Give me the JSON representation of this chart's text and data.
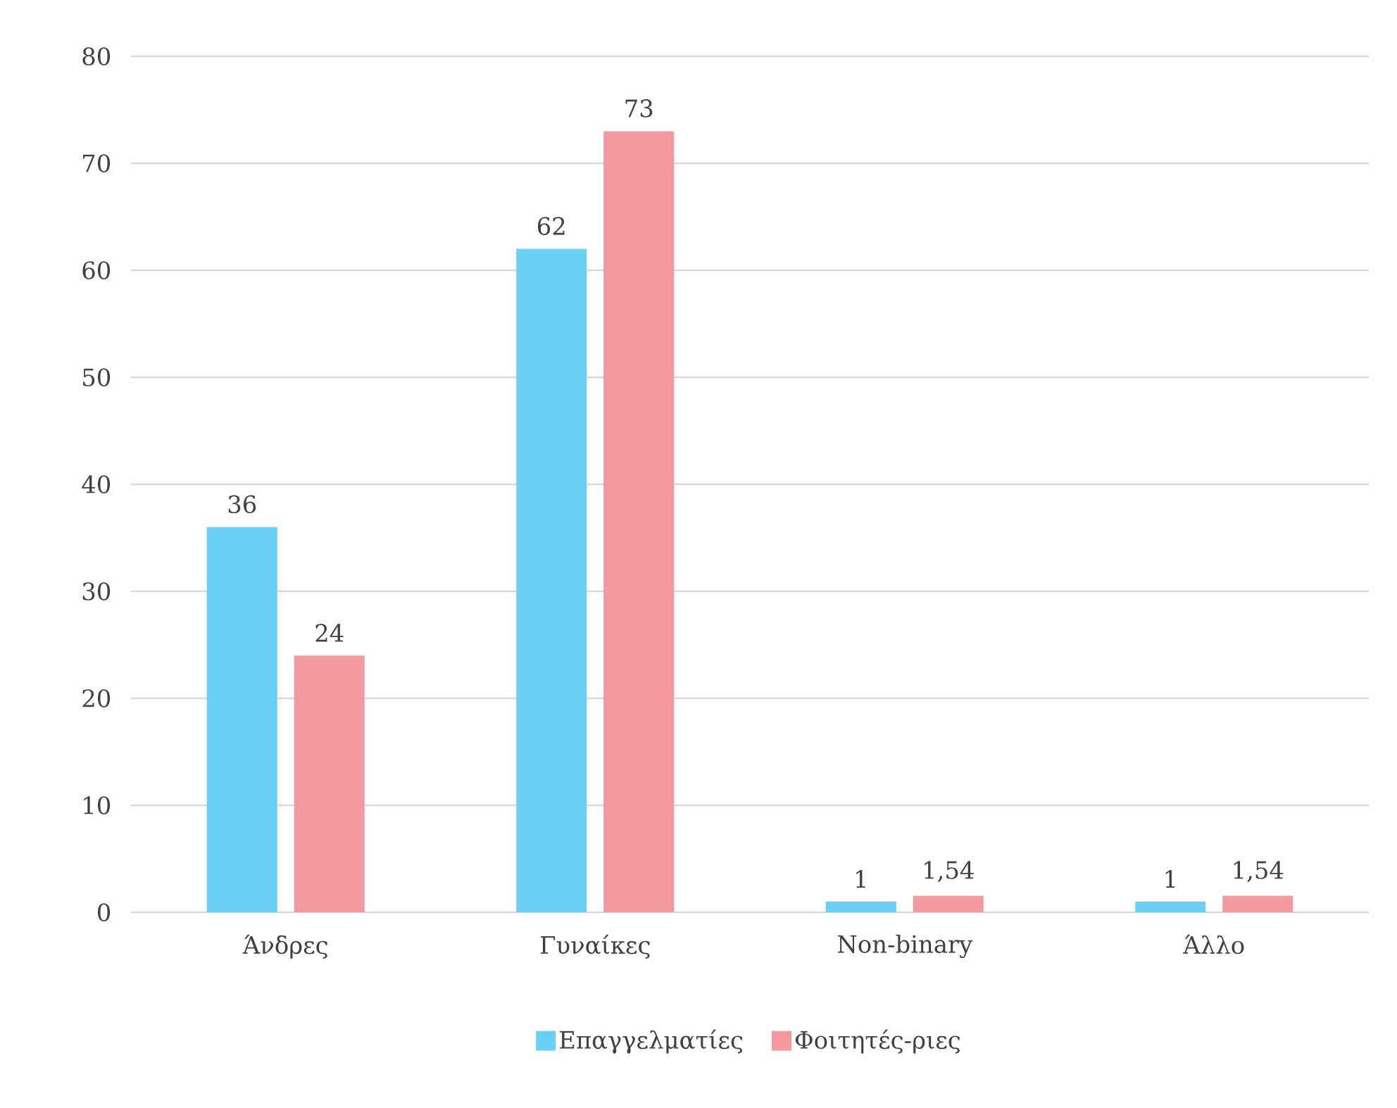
{
  "chart_data": {
    "type": "bar",
    "categories": [
      "Άνδρες",
      "Γυναίκες",
      "Non-binary",
      "Άλλο"
    ],
    "series": [
      {
        "name": "Επαγγελματίες",
        "color": "#6ad0f6",
        "values": [
          36,
          62,
          1,
          1
        ],
        "value_labels": [
          "36",
          "62",
          "1",
          "1"
        ]
      },
      {
        "name": "Φοιτητές-ριες",
        "color": "#f4999f",
        "values": [
          24,
          73,
          1.54,
          1.54
        ],
        "value_labels": [
          "24",
          "73",
          "1,54",
          "1,54"
        ]
      }
    ],
    "ylim": [
      0,
      80
    ],
    "yticks": [
      0,
      10,
      20,
      30,
      40,
      50,
      60,
      70,
      80
    ],
    "grid": "y",
    "legend": "bottom"
  }
}
